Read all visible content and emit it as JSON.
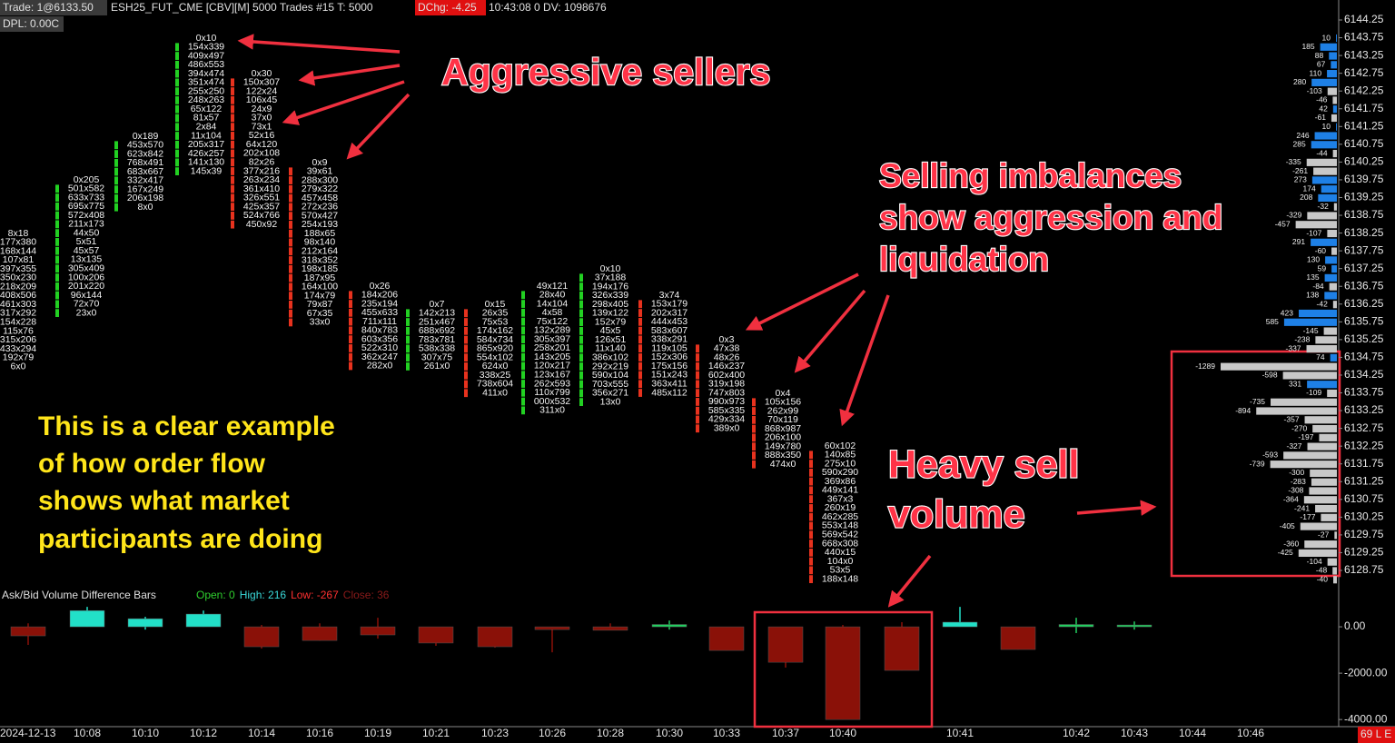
{
  "header": {
    "trade": "Trade: 1@6133.50",
    "symbol": "ESH25_FUT_CME [CBV][M] 5000 Trades #15 T: 5000",
    "dchg": "DChg: -4.25",
    "time": "10:43:08 0 DV: 1098676",
    "dpl": "DPL: 0.00C"
  },
  "price_axis": {
    "ylim": [
      6128.75,
      6144.25
    ],
    "ticks": [
      6144.25,
      6143.75,
      6143.25,
      6142.75,
      6142.25,
      6141.75,
      6141.25,
      6140.75,
      6140.25,
      6139.75,
      6139.25,
      6138.75,
      6138.25,
      6137.75,
      6137.25,
      6136.75,
      6136.25,
      6135.75,
      6135.25,
      6134.75,
      6134.25,
      6133.75,
      6133.25,
      6132.75,
      6132.25,
      6131.75,
      6131.25,
      6130.75,
      6130.25,
      6129.75,
      6129.25,
      6128.75
    ]
  },
  "footprint": {
    "columns": [
      {
        "bar_color": "#e8321e",
        "cells": [
          "8x18",
          "177x380",
          "168x144",
          "107x81",
          "397x355",
          "350x230",
          "218x209",
          "408x506",
          "461x303",
          "317x292",
          "154x228",
          "115x76",
          "315x206",
          "433x294",
          "192x79",
          "6x0"
        ]
      },
      {
        "bar_color": "#22d022",
        "cells": [
          "0x205",
          "501x582",
          "633x733",
          "695x775",
          "572x408",
          "211x173",
          "44x50",
          "5x51",
          "45x57",
          "13x135",
          "305x409",
          "100x206",
          "201x220",
          "96x144",
          "72x70",
          "23x0"
        ]
      },
      {
        "bar_color": "#22d022",
        "cells": [
          "0x189",
          "453x570",
          "623x842",
          "768x491",
          "683x667",
          "332x417",
          "167x249",
          "206x198",
          "8x0"
        ]
      },
      {
        "bar_color": "#22d022",
        "cells": [
          "0x10",
          "154x339",
          "409x497",
          "486x553",
          "394x474",
          "351x474",
          "255x250",
          "248x263",
          "65x122",
          "81x57",
          "2x84",
          "11x104",
          "205x317",
          "426x257",
          "141x130",
          "145x39"
        ]
      },
      {
        "bar_color": "#e8321e",
        "cells": [
          "0x30",
          "150x307",
          "122x24",
          "106x45",
          "24x9",
          "37x0",
          "73x1",
          "52x16",
          "64x120",
          "202x108",
          "82x26",
          "377x216",
          "263x234",
          "361x410",
          "326x551",
          "425x357",
          "524x766",
          "450x92"
        ]
      },
      {
        "bar_color": "#e8321e",
        "cells": [
          "0x9",
          "39x61",
          "288x300",
          "279x322",
          "457x458",
          "272x236",
          "570x427",
          "254x193",
          "188x65",
          "98x140",
          "212x164",
          "318x352",
          "198x185",
          "187x95",
          "164x100",
          "174x79",
          "79x87",
          "67x35",
          "33x0"
        ]
      },
      {
        "bar_color": "#e8321e",
        "cells": [
          "0x26",
          "184x206",
          "235x194",
          "455x633",
          "711x111",
          "840x783",
          "603x356",
          "522x310",
          "362x247",
          "282x0"
        ]
      },
      {
        "bar_color": "#22d022",
        "cells": [
          "0x7",
          "142x213",
          "251x467",
          "688x692",
          "783x781",
          "538x338",
          "307x75",
          "261x0"
        ]
      },
      {
        "bar_color": "#e8321e",
        "cells": [
          "0x15",
          "26x35",
          "75x53",
          "174x162",
          "584x734",
          "865x920",
          "554x102",
          "624x0",
          "338x25",
          "738x604",
          "411x0"
        ]
      },
      {
        "bar_color": "#22d022",
        "cells": [
          "49x121",
          "28x40",
          "14x104",
          "4x58",
          "75x122",
          "132x289",
          "305x397",
          "258x201",
          "143x205",
          "120x217",
          "123x167",
          "262x593",
          "110x799",
          "000x532",
          "311x0"
        ]
      },
      {
        "bar_color": "#22d022",
        "cells": [
          "0x10",
          "37x188",
          "194x176",
          "326x339",
          "298x405",
          "139x122",
          "152x79",
          "45x5",
          "126x51",
          "11x140",
          "386x102",
          "292x219",
          "590x104",
          "703x555",
          "356x271",
          "13x0"
        ]
      },
      {
        "bar_color": "#e8321e",
        "cells": [
          "3x74",
          "153x179",
          "202x317",
          "444x453",
          "583x607",
          "338x291",
          "119x105",
          "152x306",
          "175x156",
          "151x243",
          "363x411",
          "485x112"
        ]
      },
      {
        "bar_color": "#e8321e",
        "cells": [
          "0x3",
          "47x38",
          "48x26",
          "146x237",
          "602x400",
          "319x198",
          "747x803",
          "990x973",
          "585x335",
          "429x334",
          "389x0"
        ]
      },
      {
        "bar_color": "#e8321e",
        "cells": [
          "0x4",
          "105x156",
          "262x99",
          "70x119",
          "868x987",
          "206x100",
          "149x780",
          "888x350",
          "474x0"
        ]
      },
      {
        "bar_color": "#e8321e",
        "cells": [
          "60x102",
          "140x85",
          "275x10",
          "590x290",
          "369x86",
          "449x141",
          "367x3",
          "260x19",
          "462x285",
          "553x148",
          "569x542",
          "668x308",
          "440x15",
          "104x0",
          "53x5",
          "188x148"
        ]
      }
    ]
  },
  "profile": {
    "positive_color": "#1e80e6",
    "negative_color": "#c8c8c8",
    "deltas": [
      10,
      185,
      88,
      67,
      110,
      280,
      -103,
      -46,
      42,
      -61,
      10,
      246,
      285,
      -44,
      -335,
      -261,
      273,
      174,
      208,
      -32,
      -329,
      -457,
      -107,
      291,
      -60,
      130,
      59,
      135,
      -84,
      138,
      -42,
      423,
      585,
      -145,
      -238,
      -337,
      74,
      -1289,
      -598,
      331,
      -109,
      -735,
      -894,
      -357,
      -270,
      -197,
      -327,
      -593,
      -739,
      -300,
      -283,
      -308,
      -364,
      -241,
      -177,
      -405,
      -27,
      -360,
      -425,
      -104,
      -48,
      -40
    ]
  },
  "lower_chart": {
    "title": "Ask/Bid Volume Difference Bars",
    "stats": [
      {
        "text": "Open: 0",
        "color": "#2fd02f"
      },
      {
        "text": "High: 216",
        "color": "#3ad9d9"
      },
      {
        "text": "Low: -267",
        "color": "#ff3030"
      },
      {
        "text": "Close: 36",
        "color": "#8b1a1a"
      }
    ],
    "ylim": [
      -4150,
      1100
    ],
    "yticks": [
      {
        "value": 0,
        "label": "0.00"
      },
      {
        "value": -2000,
        "label": "-2000.00"
      },
      {
        "value": -4000,
        "label": "-4000.00"
      }
    ],
    "open": [
      0,
      0,
      0,
      0,
      0,
      0,
      0,
      0,
      0,
      0,
      0,
      0,
      0,
      0,
      0,
      0,
      0,
      0,
      0,
      0
    ],
    "high": [
      150,
      860,
      430,
      700,
      80,
      150,
      390,
      0,
      0,
      0,
      150,
      270,
      0,
      0,
      80,
      200,
      860,
      0,
      390,
      230
    ],
    "low": [
      -780,
      0,
      -120,
      0,
      -940,
      -600,
      -510,
      -820,
      -900,
      -1100,
      -150,
      -120,
      -1020,
      -1760,
      -4000,
      -1880,
      0,
      -980,
      -270,
      -120
    ],
    "close": [
      -390,
      700,
      350,
      550,
      -860,
      -590,
      -350,
      -700,
      -860,
      -120,
      -150,
      100,
      -1020,
      -1530,
      -4000,
      -1880,
      200,
      -980,
      100,
      80
    ],
    "body_colors": [
      "#8a1108",
      "#22e0c8",
      "#22e0c8",
      "#22e0c8",
      "#8a1108",
      "#8a1108",
      "#8a1108",
      "#8a1108",
      "#8a1108",
      "#8a1108",
      "#8a1108",
      "#22d060",
      "#8a1108",
      "#8a1108",
      "#8a1108",
      "#8a1108",
      "#22e0c8",
      "#8a1108",
      "#22d060",
      "#22d060"
    ]
  },
  "time_axis": {
    "labels": [
      "2024-12-13",
      "10:08",
      "10:10",
      "10:12",
      "10:14",
      "10:16",
      "10:19",
      "10:21",
      "10:23",
      "10:26",
      "10:28",
      "10:30",
      "10:33",
      "10:37",
      "10:40",
      "10:41",
      "10:42",
      "10:43",
      "10:44",
      "10:46"
    ]
  },
  "annotations": {
    "aggressive": "Aggressive sellers",
    "imbalances": [
      "Selling imbalances",
      "show aggression and",
      "liquidation"
    ],
    "heavy": [
      "Heavy sell",
      "volume"
    ],
    "example": [
      "This is a clear example",
      "of how order flow",
      "shows what market",
      "participants are doing"
    ]
  },
  "status": "69 L E"
}
